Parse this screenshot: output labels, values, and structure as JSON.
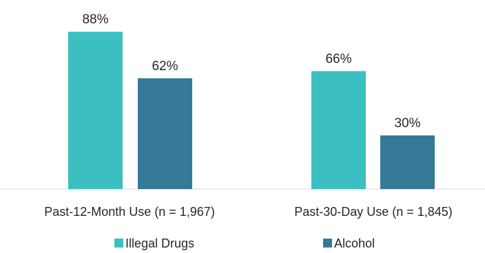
{
  "chart_data": {
    "type": "bar",
    "title": "",
    "xlabel": "",
    "ylabel": "",
    "categories": [
      "Past-12-Month Use (n = 1,967)",
      "Past-30-Day Use (n = 1,845)"
    ],
    "series": [
      {
        "name": "Illegal Drugs",
        "values": [
          88,
          66
        ],
        "labels": [
          "88%",
          "66%"
        ],
        "color": "#3cbfc1"
      },
      {
        "name": "Alcohol",
        "values": [
          62,
          30
        ],
        "labels": [
          "62%",
          "30%"
        ],
        "color": "#347a98"
      }
    ],
    "ylim": [
      0,
      100
    ],
    "unit": "%",
    "grid": false,
    "y_axis_visible": false,
    "legend": "bottom-center",
    "axis_color": "#d9d9d9",
    "text_color": "#262626"
  }
}
